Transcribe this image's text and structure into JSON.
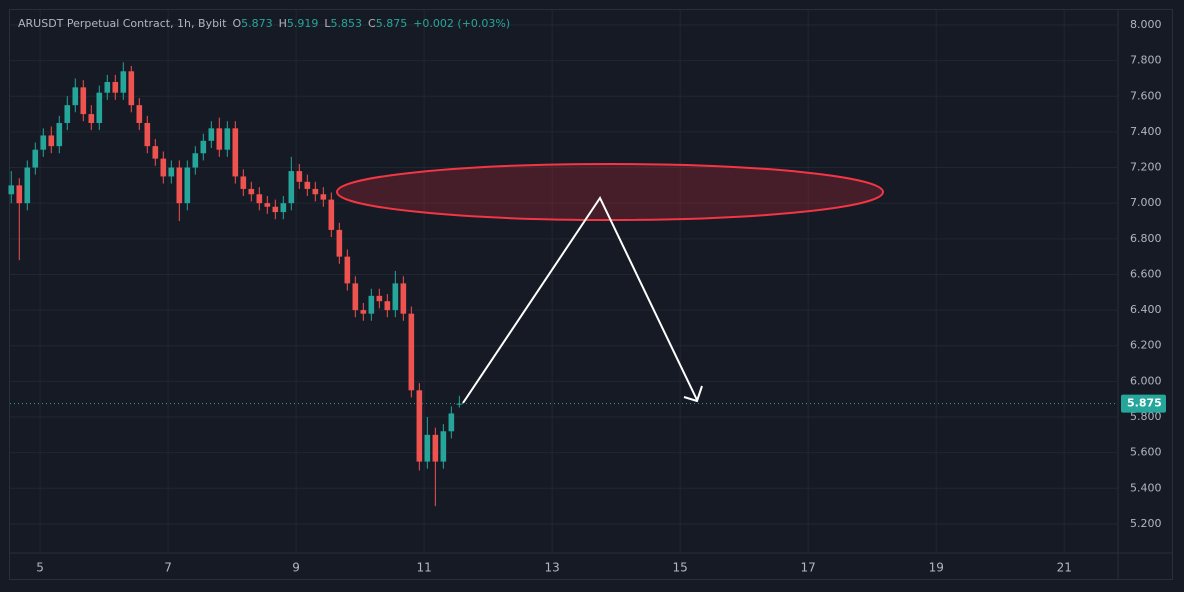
{
  "chart_data": {
    "type": "candlestick",
    "header": {
      "symbol": "ARUSDT Perpetual Contract, 1h, Bybit",
      "fields": [
        {
          "label": "O",
          "value": 5.873
        },
        {
          "label": "H",
          "value": 5.919
        },
        {
          "label": "L",
          "value": 5.853
        },
        {
          "label": "C",
          "value": 5.875
        }
      ],
      "change": "+0.002 (+0.03%)"
    },
    "x": [
      4.55,
      4.675,
      4.8,
      4.925,
      5.05,
      5.175,
      5.3,
      5.425,
      5.55,
      5.675,
      5.8,
      5.925,
      6.05,
      6.175,
      6.3,
      6.425,
      6.55,
      6.675,
      6.8,
      6.925,
      7.05,
      7.175,
      7.3,
      7.425,
      7.55,
      7.675,
      7.8,
      7.925,
      8.05,
      8.175,
      8.3,
      8.425,
      8.55,
      8.675,
      8.8,
      8.925,
      9.05,
      9.175,
      9.3,
      9.425,
      9.55,
      9.675,
      9.8,
      9.925,
      10.05,
      10.175,
      10.3,
      10.425,
      10.55,
      10.675,
      10.8,
      10.925,
      11.05,
      11.175,
      11.3,
      11.425,
      11.55
    ],
    "open": [
      7.05,
      7.1,
      7.0,
      7.2,
      7.3,
      7.38,
      7.32,
      7.45,
      7.55,
      7.65,
      7.5,
      7.45,
      7.62,
      7.68,
      7.62,
      7.74,
      7.55,
      7.45,
      7.32,
      7.25,
      7.15,
      7.2,
      7.0,
      7.2,
      7.28,
      7.35,
      7.42,
      7.3,
      7.42,
      7.15,
      7.08,
      7.05,
      7.0,
      6.98,
      6.95,
      7.0,
      7.18,
      7.12,
      7.08,
      7.05,
      7.02,
      6.85,
      6.7,
      6.55,
      6.4,
      6.38,
      6.48,
      6.45,
      6.4,
      6.55,
      6.38,
      5.95,
      5.55,
      5.7,
      5.55,
      5.72,
      5.873
    ],
    "high": [
      7.18,
      7.14,
      7.24,
      7.34,
      7.42,
      7.43,
      7.49,
      7.6,
      7.7,
      7.69,
      7.55,
      7.66,
      7.72,
      7.72,
      7.79,
      7.77,
      7.59,
      7.49,
      7.36,
      7.29,
      7.24,
      7.24,
      7.24,
      7.32,
      7.39,
      7.46,
      7.48,
      7.46,
      7.46,
      7.19,
      7.12,
      7.09,
      7.04,
      7.02,
      7.04,
      7.26,
      7.22,
      7.16,
      7.12,
      7.09,
      7.06,
      6.89,
      6.74,
      6.59,
      6.44,
      6.52,
      6.52,
      6.49,
      6.62,
      6.59,
      6.42,
      5.99,
      5.8,
      5.74,
      5.76,
      5.86,
      5.919
    ],
    "low": [
      7.0,
      6.68,
      6.96,
      7.16,
      7.26,
      7.28,
      7.28,
      7.41,
      7.51,
      7.46,
      7.41,
      7.41,
      7.58,
      7.58,
      7.58,
      7.51,
      7.41,
      7.28,
      7.21,
      7.11,
      7.11,
      6.9,
      6.96,
      7.16,
      7.24,
      7.31,
      7.26,
      7.26,
      7.11,
      7.04,
      7.01,
      6.96,
      6.94,
      6.91,
      6.91,
      6.96,
      7.08,
      7.04,
      7.01,
      6.98,
      6.81,
      6.66,
      6.51,
      6.36,
      6.34,
      6.34,
      6.41,
      6.36,
      6.36,
      6.34,
      5.91,
      5.5,
      5.51,
      5.3,
      5.51,
      5.68,
      5.853
    ],
    "close": [
      7.1,
      7.0,
      7.2,
      7.3,
      7.38,
      7.32,
      7.45,
      7.55,
      7.65,
      7.5,
      7.45,
      7.62,
      7.68,
      7.62,
      7.74,
      7.55,
      7.45,
      7.32,
      7.25,
      7.15,
      7.2,
      7.0,
      7.2,
      7.28,
      7.35,
      7.42,
      7.3,
      7.42,
      7.15,
      7.08,
      7.05,
      7.0,
      6.98,
      6.95,
      7.0,
      7.18,
      7.12,
      7.08,
      7.05,
      7.02,
      6.85,
      6.7,
      6.55,
      6.4,
      6.38,
      6.48,
      6.45,
      6.4,
      6.55,
      6.38,
      5.95,
      5.55,
      5.7,
      5.55,
      5.72,
      5.82,
      5.875
    ],
    "up_color": "#26a69a",
    "down_color": "#ef5350",
    "last_price": 5.875,
    "xlim": [
      4.53,
      21.84
    ],
    "xticks": [
      5,
      7,
      9,
      11,
      13,
      15,
      17,
      19,
      21
    ],
    "ylim": [
      5.037,
      8.084
    ],
    "yticks": [
      {
        "value": 5.2,
        "label": "5.200"
      },
      {
        "value": 5.4,
        "label": "5.400"
      },
      {
        "value": 5.6,
        "label": "5.600"
      },
      {
        "value": 5.8,
        "label": "5.800"
      },
      {
        "value": 6.0,
        "label": "6.000"
      },
      {
        "value": 6.2,
        "label": "6.200"
      },
      {
        "value": 6.4,
        "label": "6.400"
      },
      {
        "value": 6.6,
        "label": "6.600"
      },
      {
        "value": 6.8,
        "label": "6.800"
      },
      {
        "value": 7.0,
        "label": "7.000"
      },
      {
        "value": 7.2,
        "label": "7.200"
      },
      {
        "value": 7.4,
        "label": "7.400"
      },
      {
        "value": 7.6,
        "label": "7.600"
      },
      {
        "value": 7.8,
        "label": "7.800"
      },
      {
        "value": 8.0,
        "label": "8.000"
      }
    ],
    "grid": true
  }
}
